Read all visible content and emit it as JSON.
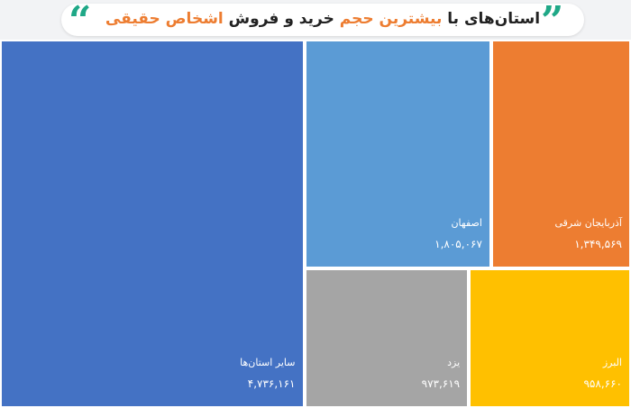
{
  "title": {
    "part1": "استان‌های با",
    "part2": "بیشترین حجم",
    "part3": "خرید و فروش",
    "part4": "اشخاص حقیقی"
  },
  "quote_glyphs": {
    "open": "“",
    "close": "”"
  },
  "colors": {
    "accent": "#ed7d31",
    "quote": "#1fa887"
  },
  "chart_data": {
    "type": "treemap",
    "title": "استان‌های با بیشترین حجم خرید و فروش اشخاص حقیقی",
    "items": [
      {
        "name": "سایر استان‌ها",
        "value": 4736161,
        "value_label": "۴,۷۳۶,۱۶۱",
        "color": "#4472c4"
      },
      {
        "name": "اصفهان",
        "value": 1805067,
        "value_label": "۱,۸۰۵,۰۶۷",
        "color": "#5b9bd5"
      },
      {
        "name": "آذربایجان شرقی",
        "value": 1349569,
        "value_label": "۱,۳۴۹,۵۶۹",
        "color": "#ed7d31"
      },
      {
        "name": "یزد",
        "value": 973619,
        "value_label": "۹۷۳,۶۱۹",
        "color": "#a5a5a5"
      },
      {
        "name": "البرز",
        "value": 958660,
        "value_label": "۹۵۸,۶۶۰",
        "color": "#ffc000"
      }
    ]
  }
}
